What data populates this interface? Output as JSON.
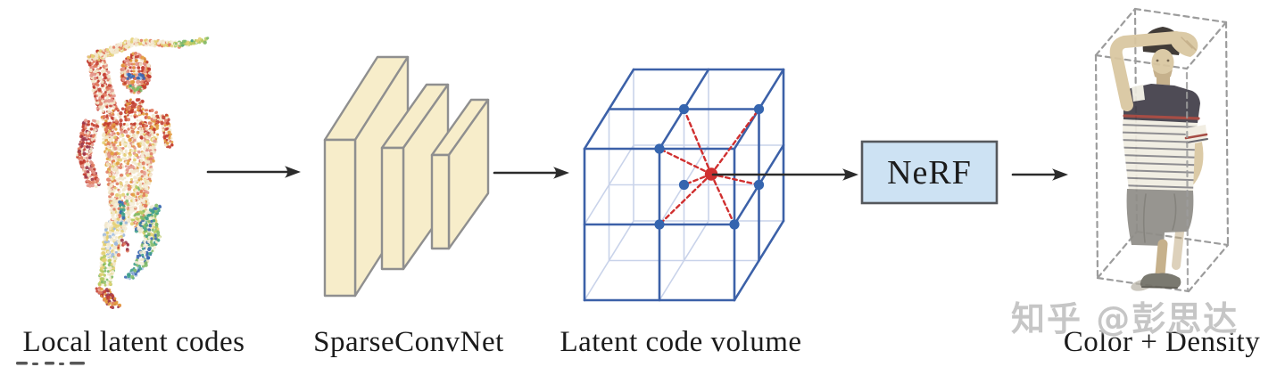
{
  "figure": {
    "captions": [
      {
        "id": "local-latent-codes",
        "text": "Local latent codes"
      },
      {
        "id": "sparseconvnet",
        "text": "SparseConvNet"
      },
      {
        "id": "latent-code-volume",
        "text": "Latent code volume"
      },
      {
        "id": "color-density",
        "text": "Color + Density"
      }
    ],
    "nerf_label": "NeRF",
    "watermark": {
      "text": "知乎 @彭思达",
      "color": "#c6c6c6"
    },
    "colors": {
      "background": "#ffffff",
      "caption_text": "#1b1b1b",
      "arrow": "#2b2b2b",
      "slab_fill": "#f7edca",
      "slab_outline": "#8f8f8f",
      "cube_edge": "#3c61a8",
      "cube_hidden_edge": "#c9d3ea",
      "grid_dot": "#3565af",
      "sample_point": "#d02f2f",
      "interp_line": "#d02f2f",
      "nerf_fill": "#cde2f3",
      "nerf_border": "#55585c",
      "bounding_box_dash": "#9c9c9c",
      "artifact_mark": "#3a3a3a",
      "person": {
        "hair": "#332e2a",
        "skin": "#d9c6a0",
        "skin_shade": "#c2ac84",
        "shirt_light": "#f1ede1",
        "shirt_dark": "#413e49",
        "stripe": "#5d5d66",
        "stripe_red": "#a04038",
        "shorts": "#908e88",
        "shorts_shade": "#7c7a74",
        "shoe": "#716f66",
        "shoe_pale": "#b9b4a8"
      },
      "pointcloud": {
        "red": "#c23b2e",
        "salmon": "#e07a5f",
        "pink": "#e4958a",
        "maroon": "#9c3448",
        "orange": "#e39b3c",
        "yellow": "#e4cf72",
        "pale": "#f1e7cb",
        "cream": "#f6efdd",
        "green": "#7fba68",
        "lime": "#b4c95e",
        "teal": "#3f9f89",
        "blue": "#3a68b2",
        "lightblue": "#9db9dd"
      }
    }
  }
}
